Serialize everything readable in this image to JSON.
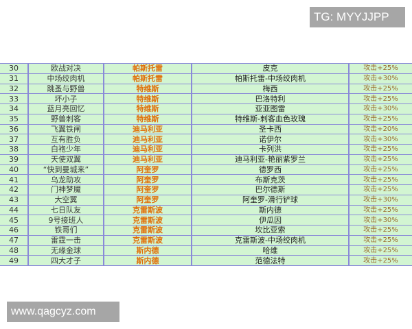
{
  "watermarks": {
    "top": "TG: MYYJJPP",
    "bottom": "www.qagcyz.com"
  },
  "colors": {
    "row_bg": "#d2f5d2",
    "border": "#8a8ad8",
    "player_text": "#e0700a",
    "effect_text": "#9a6a2a"
  },
  "rows": [
    {
      "num": "30",
      "name": "欧战对决",
      "player": "帕斯托雷",
      "skill": "皮克",
      "effect": "攻击+25%"
    },
    {
      "num": "31",
      "name": "中场绞肉机",
      "player": "帕斯托雷",
      "skill": "帕斯托雷-中场绞肉机",
      "effect": "攻击+30%"
    },
    {
      "num": "32",
      "name": "跳蚤与野兽",
      "player": "特维斯",
      "skill": "梅西",
      "effect": "攻击+25%"
    },
    {
      "num": "33",
      "name": "坏小子",
      "player": "特维斯",
      "skill": "巴洛特利",
      "effect": "攻击+25%"
    },
    {
      "num": "34",
      "name": "蓝月亮回忆",
      "player": "特维斯",
      "skill": "亚亚图雷",
      "effect": "攻击+30%"
    },
    {
      "num": "35",
      "name": "野兽刺客",
      "player": "特维斯",
      "skill": "特维斯-刺客血色玫瑰",
      "effect": "攻击+25%"
    },
    {
      "num": "36",
      "name": "飞翼铁闸",
      "player": "迪马利亚",
      "skill": "圣卡西",
      "effect": "攻击+20%"
    },
    {
      "num": "37",
      "name": "互有胜负",
      "player": "迪马利亚",
      "skill": "诺伊尔",
      "effect": "攻击+30%"
    },
    {
      "num": "38",
      "name": "白袍少年",
      "player": "迪马利亚",
      "skill": "卡列洪",
      "effect": "攻击+25%"
    },
    {
      "num": "39",
      "name": "天使双翼",
      "player": "迪马利亚",
      "skill": "迪马利亚-艳丽紫罗兰",
      "effect": "攻击+25%"
    },
    {
      "num": "40",
      "name": "“快到曼城来”",
      "player": "阿奎罗",
      "skill": "德罗西",
      "effect": "攻击+25%"
    },
    {
      "num": "41",
      "name": "乌龙助攻",
      "player": "阿奎罗",
      "skill": "布斯克茨",
      "effect": "攻击+25%"
    },
    {
      "num": "42",
      "name": "门神梦魇",
      "player": "阿奎罗",
      "skill": "巴尔德斯",
      "effect": "攻击+25%"
    },
    {
      "num": "43",
      "name": "大空翼",
      "player": "阿奎罗",
      "skill": "阿奎罗-滑行铲球",
      "effect": "攻击+30%"
    },
    {
      "num": "44",
      "name": "七日队友",
      "player": "克雷斯波",
      "skill": "斯内德",
      "effect": "攻击+25%"
    },
    {
      "num": "45",
      "name": "9号接班人",
      "player": "克雷斯波",
      "skill": "伊瓜因",
      "effect": "攻击+30%"
    },
    {
      "num": "46",
      "name": "铁哥们",
      "player": "克雷斯波",
      "skill": "坎比亚索",
      "effect": "攻击+25%"
    },
    {
      "num": "47",
      "name": "雷霆一击",
      "player": "克雷斯波",
      "skill": "克雷斯波-中场绞肉机",
      "effect": "攻击+25%"
    },
    {
      "num": "48",
      "name": "无缘金球",
      "player": "斯内德",
      "skill": "哈维",
      "effect": "攻击+25%"
    },
    {
      "num": "49",
      "name": "四大才子",
      "player": "斯内德",
      "skill": "范德法特",
      "effect": "攻击+25%"
    }
  ]
}
